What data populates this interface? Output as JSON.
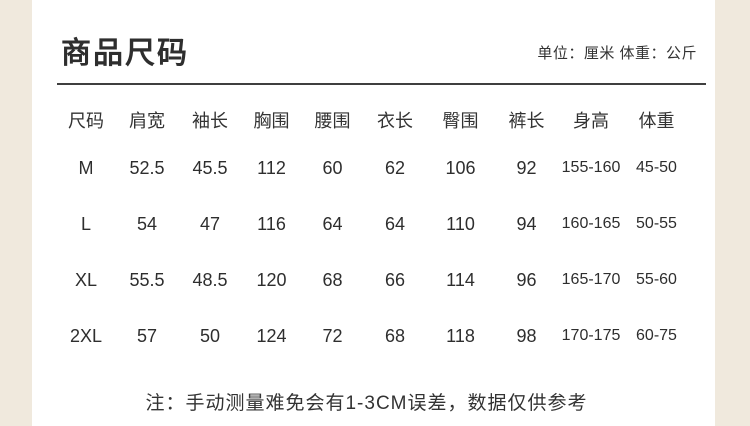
{
  "header": {
    "title": "商品尺码",
    "unit_note": "单位：厘米 体重：公斤"
  },
  "table": {
    "columns": [
      "尺码",
      "肩宽",
      "袖长",
      "胸围",
      "腰围",
      "衣长",
      "臀围",
      "裤长",
      "身高",
      "体重"
    ],
    "rows": [
      [
        "M",
        "52.5",
        "45.5",
        "112",
        "60",
        "62",
        "106",
        "92",
        "155-160",
        "45-50"
      ],
      [
        "L",
        "54",
        "47",
        "116",
        "64",
        "64",
        "110",
        "94",
        "160-165",
        "50-55"
      ],
      [
        "XL",
        "55.5",
        "48.5",
        "120",
        "68",
        "66",
        "114",
        "96",
        "165-170",
        "55-60"
      ],
      [
        "2XL",
        "57",
        "50",
        "124",
        "72",
        "68",
        "118",
        "98",
        "170-175",
        "60-75"
      ]
    ]
  },
  "footer": {
    "note": "注：手动测量难免会有1-3CM误差，数据仅供参考"
  },
  "colors": {
    "background": "#f0e9dd",
    "card": "#ffffff",
    "text": "#2e2e2e",
    "divider": "#3f3f3f"
  }
}
